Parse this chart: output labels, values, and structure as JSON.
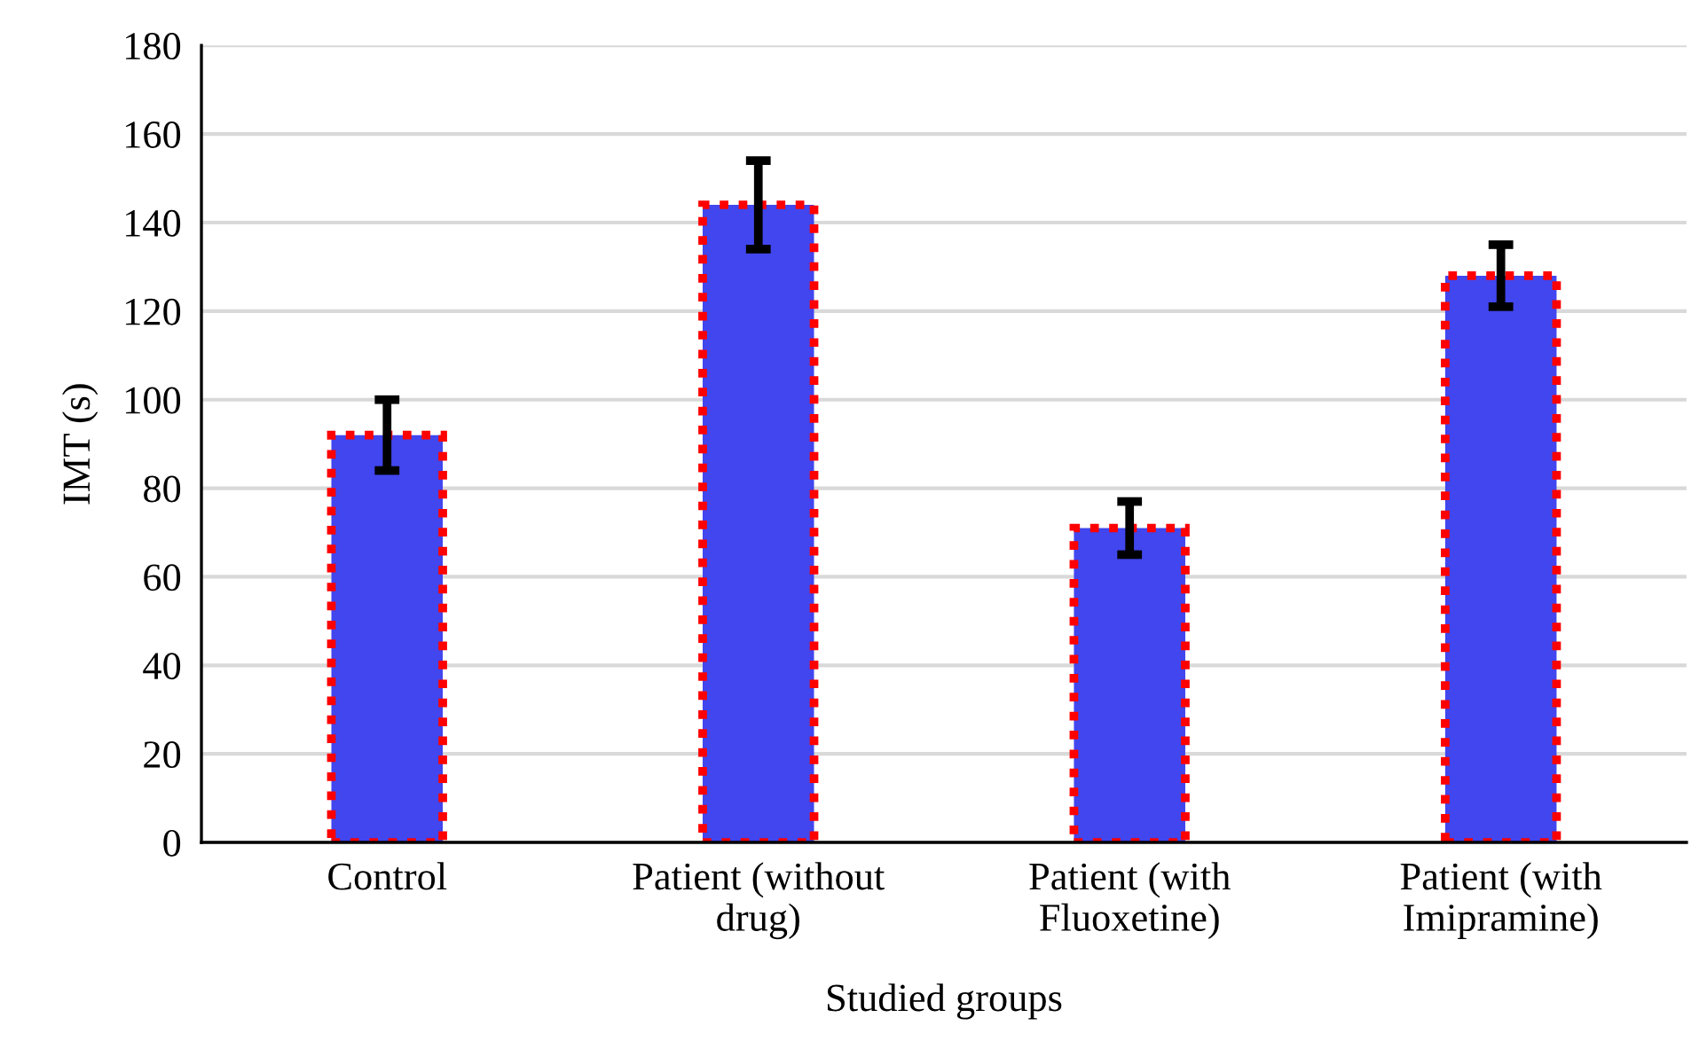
{
  "chart_data": {
    "type": "bar",
    "xlabel": "Studied groups",
    "ylabel": "IMT (s)",
    "categories": [
      "Control",
      "Patient (without\ndrug)",
      "Patient (with\nFluoxetine)",
      "Patient (with\nImipramine)"
    ],
    "values": [
      92,
      144,
      71,
      128
    ],
    "errors": [
      8,
      10,
      6,
      7
    ],
    "color": "#4146ee",
    "ylim": [
      0,
      180
    ],
    "yticks": [
      0,
      20,
      40,
      60,
      80,
      100,
      120,
      140,
      160,
      180
    ],
    "grid": "y"
  }
}
